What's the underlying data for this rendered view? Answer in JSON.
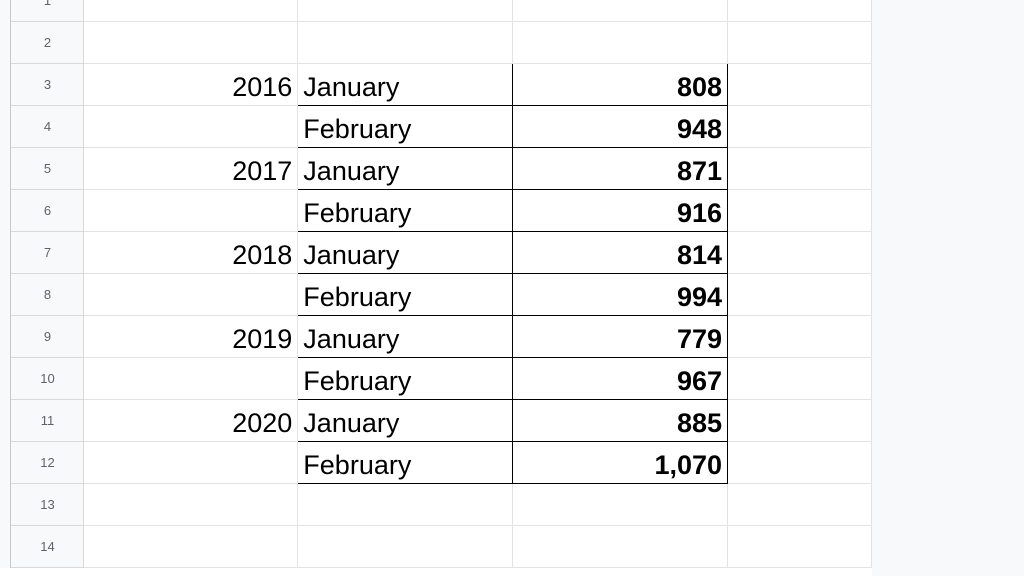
{
  "row_numbers": [
    "1",
    "2",
    "3",
    "4",
    "5",
    "6",
    "7",
    "8",
    "9",
    "10",
    "11",
    "12",
    "13",
    "14"
  ],
  "rows": [
    {
      "year": "",
      "month": "",
      "value": ""
    },
    {
      "year": "",
      "month": "",
      "value": ""
    },
    {
      "year": "2016",
      "month": "January",
      "value": "808"
    },
    {
      "year": "",
      "month": "February",
      "value": "948"
    },
    {
      "year": "2017",
      "month": "January",
      "value": "871"
    },
    {
      "year": "",
      "month": "February",
      "value": "916"
    },
    {
      "year": "2018",
      "month": "January",
      "value": "814"
    },
    {
      "year": "",
      "month": "February",
      "value": "994"
    },
    {
      "year": "2019",
      "month": "January",
      "value": "779"
    },
    {
      "year": "",
      "month": "February",
      "value": "967"
    },
    {
      "year": "2020",
      "month": "January",
      "value": "885"
    },
    {
      "year": "",
      "month": "February",
      "value": "1,070"
    },
    {
      "year": "",
      "month": "",
      "value": ""
    },
    {
      "year": "",
      "month": "",
      "value": ""
    }
  ]
}
